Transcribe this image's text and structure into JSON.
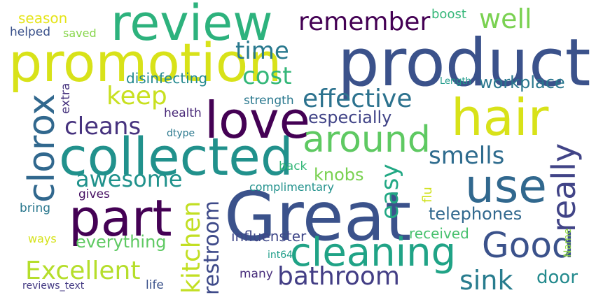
{
  "words": [
    {
      "text": "product",
      "color": "#3b528b"
    },
    {
      "text": "Great",
      "color": "#3b528b"
    },
    {
      "text": "review",
      "color": "#2db27d"
    },
    {
      "text": "promotion",
      "color": "#d8e219"
    },
    {
      "text": "collected",
      "color": "#21918c"
    },
    {
      "text": "love",
      "color": "#440154"
    },
    {
      "text": "hair",
      "color": "#d8e219"
    },
    {
      "text": "part",
      "color": "#440154"
    },
    {
      "text": "use",
      "color": "#31688e"
    },
    {
      "text": "cleaning",
      "color": "#20a386"
    },
    {
      "text": "Good",
      "color": "#3b528b"
    },
    {
      "text": "around",
      "color": "#5ec962"
    },
    {
      "text": "clorox",
      "color": "#31688e"
    },
    {
      "text": "really",
      "color": "#414487"
    },
    {
      "text": "remember",
      "color": "#440154"
    },
    {
      "text": "well",
      "color": "#7ad151"
    },
    {
      "text": "time",
      "color": "#29798e"
    },
    {
      "text": "cost",
      "color": "#35b779"
    },
    {
      "text": "effective",
      "color": "#2c728e"
    },
    {
      "text": "keep",
      "color": "#c8e020"
    },
    {
      "text": "cleans",
      "color": "#46327e"
    },
    {
      "text": "smells",
      "color": "#2f6c8e"
    },
    {
      "text": "awesome",
      "color": "#20928c"
    },
    {
      "text": "easy",
      "color": "#22a884"
    },
    {
      "text": "Excellent",
      "color": "#b5de2b"
    },
    {
      "text": "bathroom",
      "color": "#433e85"
    },
    {
      "text": "sink",
      "color": "#287c8e"
    },
    {
      "text": "kitchen",
      "color": "#c2df23"
    },
    {
      "text": "restroom",
      "color": "#3e4a89"
    },
    {
      "text": "workplace",
      "color": "#2a778e"
    },
    {
      "text": "especially",
      "color": "#414487"
    },
    {
      "text": "telephones",
      "color": "#31688e"
    },
    {
      "text": "everything",
      "color": "#5ec962"
    },
    {
      "text": "received",
      "color": "#48c16e"
    },
    {
      "text": "influenster",
      "color": "#3f4788"
    },
    {
      "text": "door",
      "color": "#238a8d"
    },
    {
      "text": "knobs",
      "color": "#7ad151"
    },
    {
      "text": "disinfecting",
      "color": "#23898e"
    },
    {
      "text": "season",
      "color": "#e5e419"
    },
    {
      "text": "boost",
      "color": "#35b779"
    },
    {
      "text": "helped",
      "color": "#3b528b"
    },
    {
      "text": "saved",
      "color": "#86d549"
    },
    {
      "text": "strength",
      "color": "#2a788e"
    },
    {
      "text": "complimentary",
      "color": "#21918c"
    },
    {
      "text": "health",
      "color": "#482878"
    },
    {
      "text": "extra",
      "color": "#46337e"
    },
    {
      "text": "dtype",
      "color": "#2a788e"
    },
    {
      "text": "back",
      "color": "#35b779"
    },
    {
      "text": "flu",
      "color": "#d0e11c"
    },
    {
      "text": "gives",
      "color": "#471063"
    },
    {
      "text": "bring",
      "color": "#2a788e"
    },
    {
      "text": "ways",
      "color": "#d5e21a"
    },
    {
      "text": "int64",
      "color": "#1f9e89"
    },
    {
      "text": "many",
      "color": "#472d7b"
    },
    {
      "text": "life",
      "color": "#3b528b"
    },
    {
      "text": "reviews_text",
      "color": "#443a83"
    },
    {
      "text": "Name",
      "color": "#90d743"
    },
    {
      "text": "Length",
      "color": "#1f9a8a"
    }
  ]
}
